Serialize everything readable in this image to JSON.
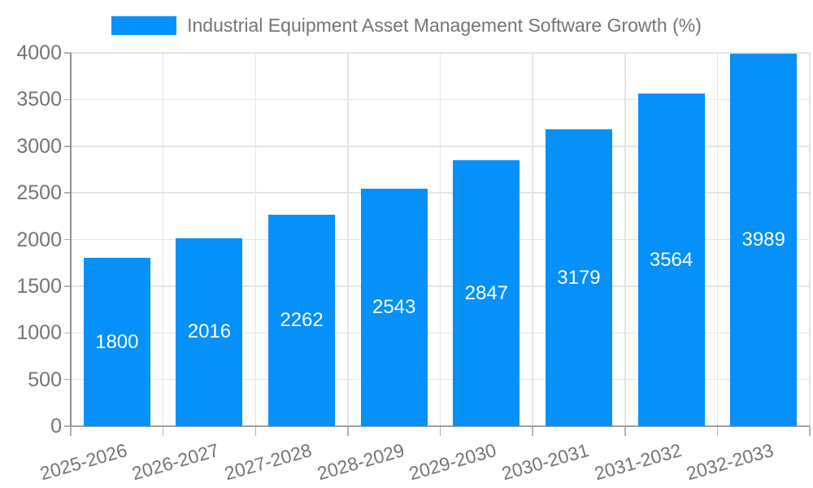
{
  "legend": {
    "label": "Industrial Equipment Asset Management Software Growth (%)"
  },
  "colors": {
    "bar": "#0590fa",
    "axis_text": "#757575",
    "value_label": "#ffffff",
    "gridline": "#e4e4e4",
    "axis_line": "#999999",
    "background": "#ffffff"
  },
  "chart_data": {
    "type": "bar",
    "title": "",
    "categories": [
      "2025-2026",
      "2026-2027",
      "2027-2028",
      "2028-2029",
      "2029-2030",
      "2030-2031",
      "2031-2032",
      "2032-2033"
    ],
    "series": [
      {
        "name": "Industrial Equipment Asset Management Software Growth (%)",
        "values": [
          1800,
          2016,
          2262,
          2543,
          2847,
          3179,
          3564,
          3989
        ]
      }
    ],
    "value_labels": [
      "1800",
      "2016",
      "2262",
      "2543",
      "2847",
      "3179",
      "3564",
      "3989"
    ],
    "ytick_labels": [
      "0",
      "500",
      "1000",
      "1500",
      "2000",
      "2500",
      "3000",
      "3500",
      "4000"
    ],
    "xlabel": "",
    "ylabel": "",
    "ylim": [
      0,
      4000
    ],
    "ytick_interval": 500,
    "grid": true,
    "legend_position": "top-center",
    "value_label_position": "inside-center"
  }
}
